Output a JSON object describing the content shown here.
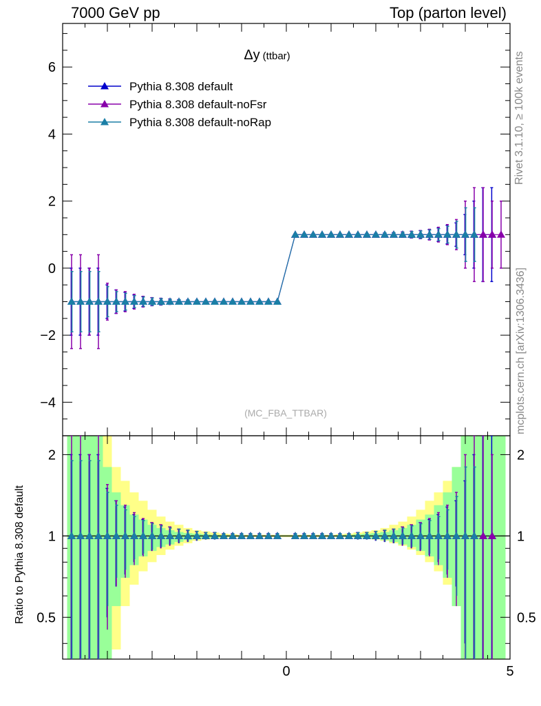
{
  "header": {
    "left": "7000 GeV pp",
    "right": "Top (parton level)"
  },
  "side_labels": {
    "rivet": "Rivet 3.1.10, ≥ 100k events",
    "mcplots": "mcplots.cern.ch [arXiv:1306.3436]"
  },
  "colors": {
    "default": "#0000cc",
    "noFsr": "#8800aa",
    "noRap": "#1a7fa6",
    "band_yellow": "#ffff88",
    "band_green": "#99ff99"
  },
  "chart_data": [
    {
      "type": "line",
      "title": "Δy",
      "title_suffix": "(ttbar)",
      "watermark": "(MC_FBA_TTBAR)",
      "xlim": [
        -5,
        5
      ],
      "ylim": [
        -5,
        7.3
      ],
      "yticks": [
        -4,
        -2,
        0,
        2,
        4,
        6
      ],
      "ytick_labels": [
        "−4",
        "−2",
        "0",
        "2",
        "4",
        "6"
      ],
      "legend_position": "top-left",
      "x": [
        -4.8,
        -4.6,
        -4.4,
        -4.2,
        -4.0,
        -3.8,
        -3.6,
        -3.4,
        -3.2,
        -3.0,
        -2.8,
        -2.6,
        -2.4,
        -2.2,
        -2.0,
        -1.8,
        -1.6,
        -1.4,
        -1.2,
        -1.0,
        -0.8,
        -0.6,
        -0.4,
        -0.2,
        0.2,
        0.4,
        0.6,
        0.8,
        1.0,
        1.2,
        1.4,
        1.6,
        1.8,
        2.0,
        2.2,
        2.4,
        2.6,
        2.8,
        3.0,
        3.2,
        3.4,
        3.6,
        3.8,
        4.0,
        4.2,
        4.4,
        4.6,
        4.8
      ],
      "series": [
        {
          "name": "Pythia 8.308 default",
          "values": [
            -1,
            -1,
            -1,
            -1,
            -1,
            -1,
            -1,
            -1,
            -1,
            -1,
            -1,
            -1,
            -1,
            -1,
            -1,
            -1,
            -1,
            -1,
            -1,
            -1,
            -1,
            -1,
            -1,
            -1,
            1,
            1,
            1,
            1,
            1,
            1,
            1,
            1,
            1,
            1,
            1,
            1,
            1,
            1,
            1,
            1,
            1,
            1,
            1,
            1,
            1,
            1,
            1,
            null
          ],
          "errors": [
            1.0,
            1.0,
            1.0,
            1.0,
            0.5,
            0.35,
            0.28,
            0.2,
            0.15,
            0.12,
            0.1,
            0.08,
            0.06,
            0.05,
            0.04,
            0.03,
            0.03,
            0.02,
            0.02,
            0.02,
            0.02,
            0.02,
            0.02,
            0.02,
            0.02,
            0.02,
            0.02,
            0.02,
            0.02,
            0.02,
            0.02,
            0.03,
            0.03,
            0.04,
            0.05,
            0.06,
            0.08,
            0.1,
            0.12,
            0.15,
            0.2,
            0.28,
            0.35,
            0.6,
            1.0,
            1.4,
            1.4,
            null
          ]
        },
        {
          "name": "Pythia 8.308 default-noFsr",
          "values": [
            -1,
            -1,
            -1,
            -1,
            -1,
            -1,
            -1,
            -1,
            -1,
            -1,
            -1,
            -1,
            -1,
            -1,
            -1,
            -1,
            -1,
            -1,
            -1,
            -1,
            -1,
            -1,
            -1,
            -1,
            1,
            1,
            1,
            1,
            1,
            1,
            1,
            1,
            1,
            1,
            1,
            1,
            1,
            1,
            1,
            1,
            1,
            1,
            1,
            1,
            1,
            1,
            1,
            1
          ],
          "errors": [
            1.4,
            1.4,
            1.0,
            1.4,
            0.55,
            0.35,
            0.3,
            0.22,
            0.16,
            0.12,
            0.1,
            0.08,
            0.06,
            0.05,
            0.04,
            0.03,
            0.03,
            0.02,
            0.02,
            0.02,
            0.02,
            0.02,
            0.02,
            0.02,
            0.02,
            0.02,
            0.02,
            0.02,
            0.02,
            0.02,
            0.02,
            0.03,
            0.03,
            0.04,
            0.05,
            0.06,
            0.08,
            0.1,
            0.12,
            0.16,
            0.22,
            0.3,
            0.45,
            1.0,
            1.4,
            1.4,
            1.0,
            1.0
          ]
        },
        {
          "name": "Pythia 8.308 default-noRap",
          "values": [
            -1,
            -1,
            -1,
            -1,
            -1,
            -1,
            -1,
            -1,
            -1,
            -1,
            -1,
            -1,
            -1,
            -1,
            -1,
            -1,
            -1,
            -1,
            -1,
            -1,
            -1,
            -1,
            -1,
            -1,
            1,
            1,
            1,
            1,
            1,
            1,
            1,
            1,
            1,
            1,
            1,
            1,
            1,
            1,
            1,
            1,
            1,
            1,
            1,
            1,
            1,
            null,
            null,
            null
          ],
          "errors": [
            0.9,
            0.9,
            0.9,
            0.9,
            0.45,
            0.3,
            0.25,
            0.18,
            0.14,
            0.11,
            0.09,
            0.07,
            0.06,
            0.05,
            0.04,
            0.03,
            0.03,
            0.02,
            0.02,
            0.02,
            0.02,
            0.02,
            0.02,
            0.02,
            0.02,
            0.02,
            0.02,
            0.02,
            0.02,
            0.02,
            0.02,
            0.03,
            0.03,
            0.04,
            0.05,
            0.06,
            0.07,
            0.09,
            0.11,
            0.14,
            0.18,
            0.25,
            0.4,
            0.8,
            0.8,
            null,
            null,
            null
          ]
        }
      ]
    },
    {
      "type": "line",
      "ylabel": "Ratio to Pythia 8.308 default",
      "xlim": [
        -5,
        5
      ],
      "ylim": [
        0.35,
        2.35
      ],
      "log_y": true,
      "xticks": [
        0,
        5
      ],
      "xtick_labels": [
        "0",
        "5"
      ],
      "yticks": [
        0.5,
        1,
        2
      ],
      "ytick_labels": [
        "0.5",
        "1",
        "2"
      ],
      "reference_line": 1,
      "x_bins": [
        -4.8,
        -4.6,
        -4.4,
        -4.2,
        -4.0,
        -3.8,
        -3.6,
        -3.4,
        -3.2,
        -3.0,
        -2.8,
        -2.6,
        -2.4,
        -2.2,
        -2.0,
        -1.8,
        -1.6,
        -1.4,
        -1.2,
        -1.0,
        -0.8,
        -0.6,
        -0.4,
        -0.2,
        0.0,
        0.2,
        0.4,
        0.6,
        0.8,
        1.0,
        1.2,
        1.4,
        1.6,
        1.8,
        2.0,
        2.2,
        2.4,
        2.6,
        2.8,
        3.0,
        3.2,
        3.4,
        3.6,
        3.8,
        4.0,
        4.2,
        4.4,
        4.6,
        4.8
      ],
      "band_yellow": {
        "lo": [
          0.3,
          0.3,
          0.3,
          0.3,
          0.3,
          0.38,
          0.55,
          0.66,
          0.74,
          0.8,
          0.85,
          0.89,
          0.92,
          0.94,
          0.96,
          0.97,
          0.98,
          0.985,
          0.99,
          0.99,
          0.99,
          0.99,
          0.99,
          0.99,
          0.99,
          0.99,
          0.99,
          0.99,
          0.99,
          0.99,
          0.99,
          0.99,
          0.985,
          0.98,
          0.97,
          0.96,
          0.94,
          0.92,
          0.89,
          0.85,
          0.8,
          0.74,
          0.66,
          0.55,
          0.38,
          0.3,
          0.3,
          0.3,
          0.3
        ],
        "hi": [
          2.4,
          2.4,
          2.4,
          2.4,
          2.4,
          1.8,
          1.6,
          1.45,
          1.35,
          1.25,
          1.18,
          1.13,
          1.1,
          1.07,
          1.05,
          1.04,
          1.03,
          1.02,
          1.015,
          1.01,
          1.01,
          1.01,
          1.01,
          1.01,
          1.01,
          1.01,
          1.01,
          1.01,
          1.01,
          1.01,
          1.015,
          1.02,
          1.03,
          1.04,
          1.05,
          1.07,
          1.1,
          1.13,
          1.18,
          1.25,
          1.35,
          1.45,
          1.6,
          1.8,
          2.4,
          2.4,
          2.4,
          2.4,
          2.4
        ]
      },
      "band_green": {
        "lo": [
          0.3,
          0.3,
          0.3,
          0.3,
          0.3,
          0.55,
          0.7,
          0.78,
          0.84,
          0.88,
          0.91,
          0.93,
          0.95,
          0.965,
          0.975,
          0.98,
          0.985,
          0.99,
          0.993,
          0.995,
          0.995,
          0.995,
          0.995,
          0.995,
          0.995,
          0.995,
          0.995,
          0.995,
          0.995,
          0.995,
          0.993,
          0.99,
          0.985,
          0.98,
          0.975,
          0.965,
          0.95,
          0.93,
          0.91,
          0.88,
          0.84,
          0.78,
          0.7,
          0.55,
          0.3,
          0.3,
          0.3,
          0.3,
          0.3
        ],
        "hi": [
          2.4,
          2.4,
          2.4,
          2.4,
          1.8,
          1.45,
          1.3,
          1.2,
          1.15,
          1.1,
          1.07,
          1.05,
          1.035,
          1.025,
          1.02,
          1.015,
          1.01,
          1.007,
          1.005,
          1.005,
          1.005,
          1.005,
          1.005,
          1.005,
          1.005,
          1.005,
          1.005,
          1.005,
          1.005,
          1.005,
          1.007,
          1.01,
          1.015,
          1.02,
          1.025,
          1.035,
          1.05,
          1.07,
          1.1,
          1.15,
          1.2,
          1.3,
          1.45,
          1.8,
          2.4,
          2.4,
          2.4,
          2.4,
          2.4
        ]
      }
    }
  ]
}
